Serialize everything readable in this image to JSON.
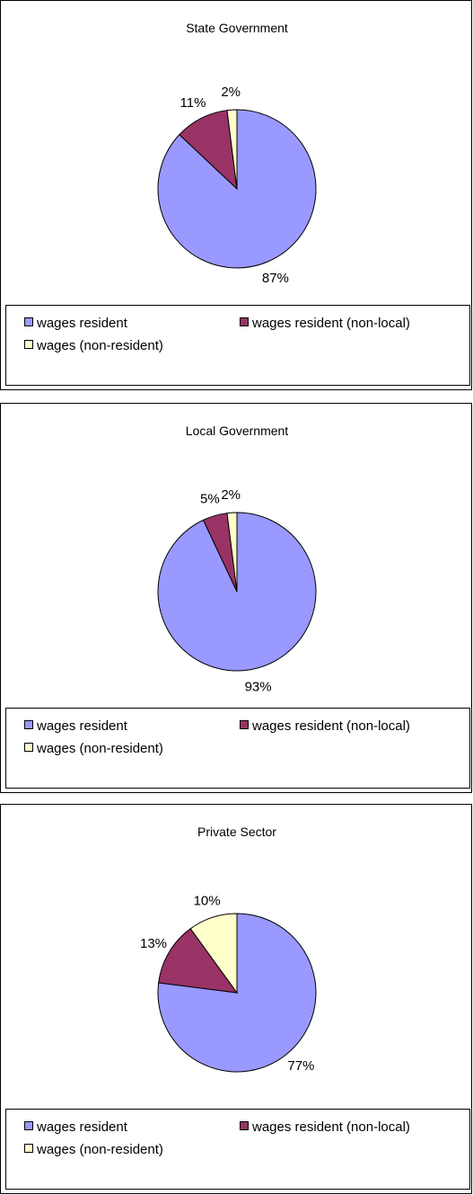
{
  "colors": {
    "wages_resident": "#9999ff",
    "wages_resident_non_local": "#993366",
    "wages_non_resident": "#ffffcc",
    "outline": "#000000"
  },
  "legend": [
    "wages resident",
    "wages resident (non-local)",
    "wages (non-resident)"
  ],
  "chart_data": [
    {
      "type": "pie",
      "title": "State Government",
      "categories": [
        "wages resident",
        "wages resident (non-local)",
        "wages (non-resident)"
      ],
      "values": [
        87,
        11,
        2
      ],
      "labels": [
        "87%",
        "11%",
        "2%"
      ]
    },
    {
      "type": "pie",
      "title": "Local Government",
      "categories": [
        "wages resident",
        "wages resident (non-local)",
        "wages (non-resident)"
      ],
      "values": [
        93,
        5,
        2
      ],
      "labels": [
        "93%",
        "5%",
        "2%"
      ]
    },
    {
      "type": "pie",
      "title": "Private Sector",
      "categories": [
        "wages resident",
        "wages resident (non-local)",
        "wages (non-resident)"
      ],
      "values": [
        77,
        13,
        10
      ],
      "labels": [
        "77%",
        "13%",
        "10%"
      ]
    }
  ]
}
